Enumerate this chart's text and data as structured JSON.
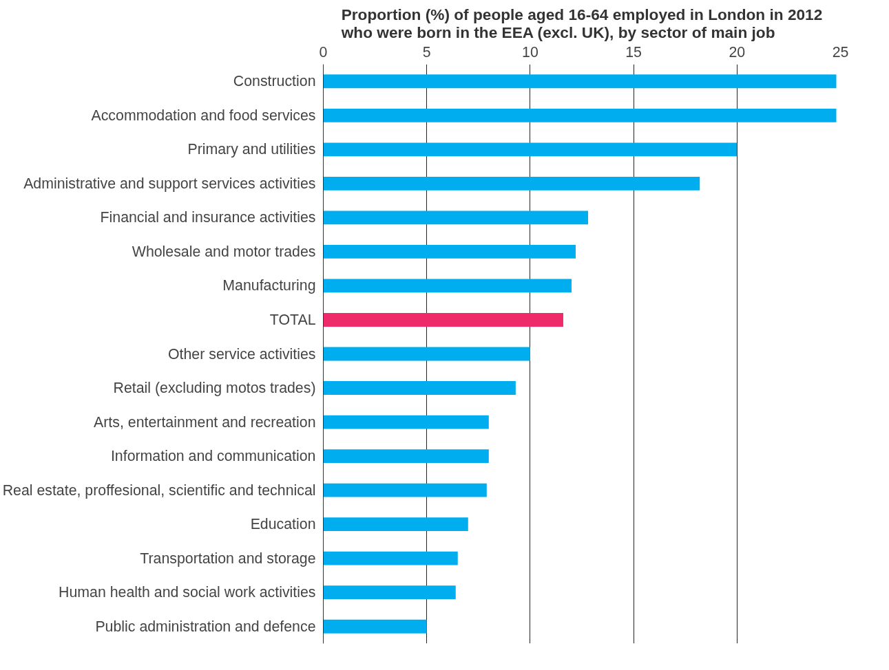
{
  "chart_data": {
    "type": "bar",
    "orientation": "horizontal",
    "title": "Proportion (%) of people aged 16-64 employed in London in 2012\nwho were born in the EEA (excl. UK), by sector of main job",
    "categories": [
      "Construction",
      "Accommodation and food services",
      "Primary and utilities",
      "Administrative and support services activities",
      "Financial and insurance activities",
      "Wholesale and motor trades",
      "Manufacturing",
      "TOTAL",
      "Other service activities",
      "Retail (excluding motos trades)",
      "Arts, entertainment and recreation",
      "Information and communication",
      "Real estate, proffesional, scientific and technical",
      "Education",
      "Transportation and storage",
      "Human health and social work activities",
      "Public administration and defence"
    ],
    "values": [
      24.8,
      24.8,
      20.0,
      18.2,
      12.8,
      12.2,
      12.0,
      11.6,
      10.0,
      9.3,
      8.0,
      8.0,
      7.9,
      7.0,
      6.5,
      6.4,
      5.0
    ],
    "colors": [
      "#00aeef",
      "#00aeef",
      "#00aeef",
      "#00aeef",
      "#00aeef",
      "#00aeef",
      "#00aeef",
      "#ee2a6b",
      "#00aeef",
      "#00aeef",
      "#00aeef",
      "#00aeef",
      "#00aeef",
      "#00aeef",
      "#00aeef",
      "#00aeef",
      "#00aeef"
    ],
    "xlim": [
      0,
      25
    ],
    "xticks": [
      0,
      5,
      10,
      15,
      20,
      25
    ],
    "grid": "x"
  }
}
